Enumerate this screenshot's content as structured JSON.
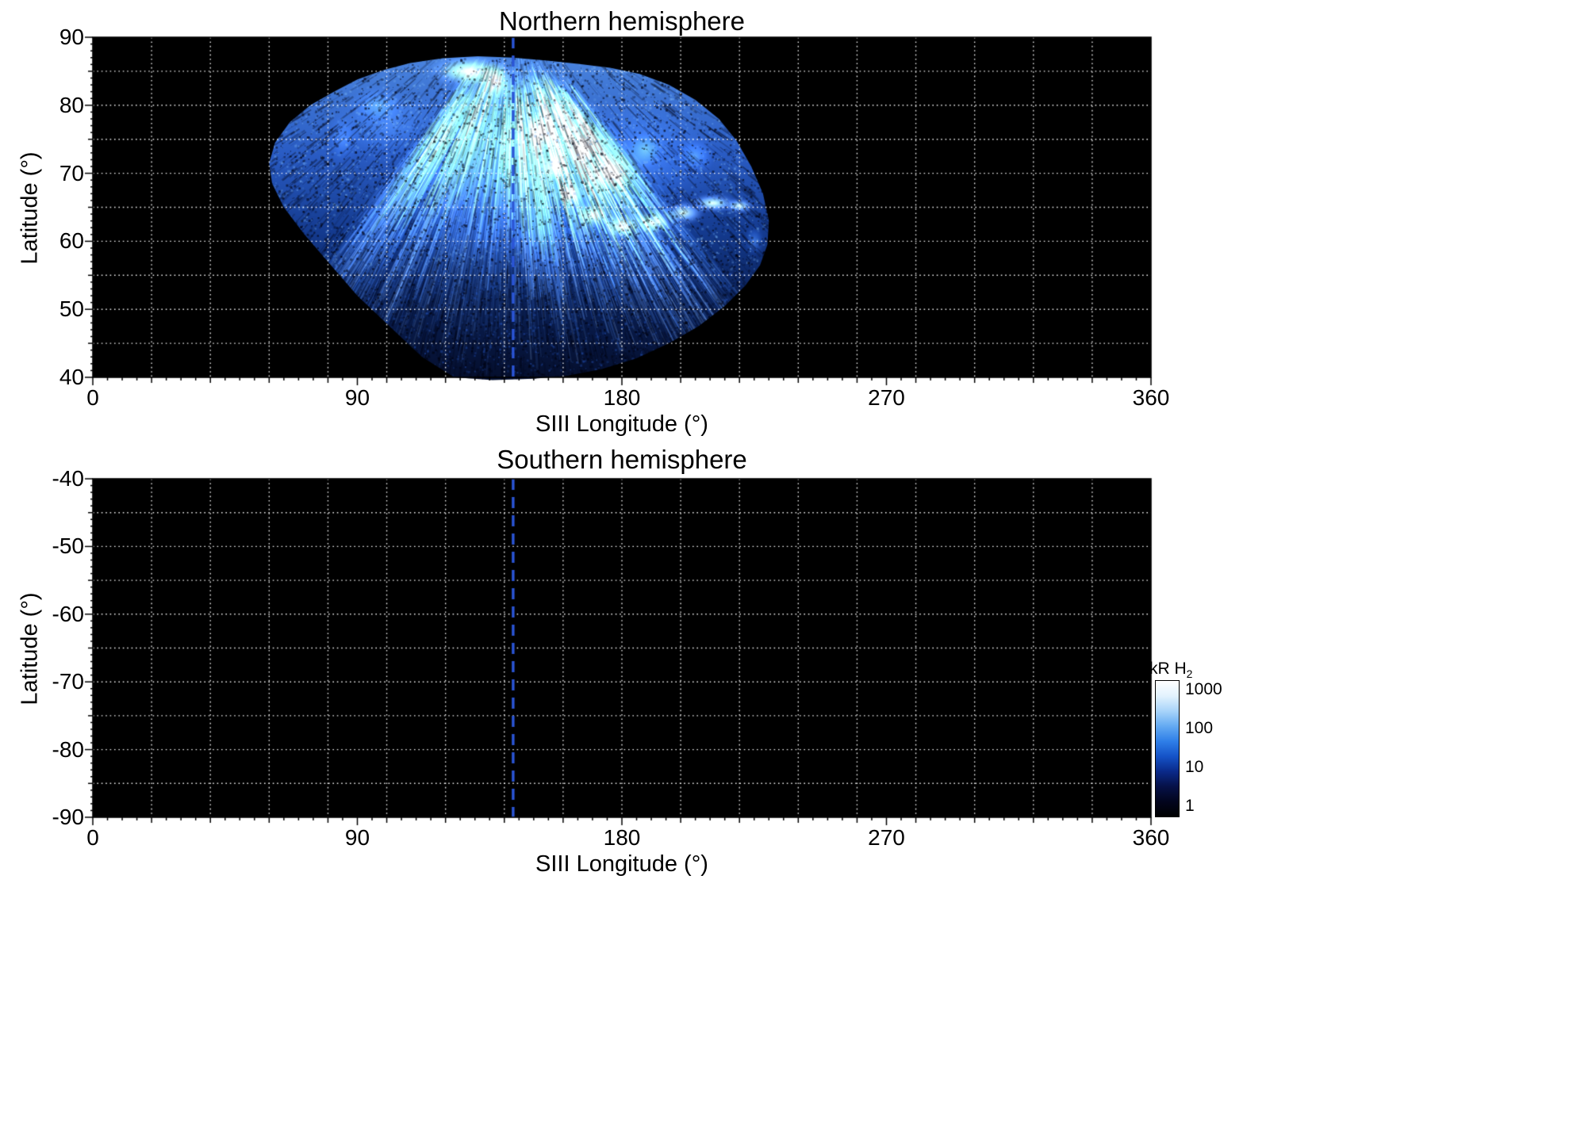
{
  "figure": {
    "background": "#ffffff",
    "plot_background": "#000000"
  },
  "chart_data": {
    "type": "heatmap",
    "xlabel": "SIII Longitude (°)",
    "ylabel": "Latitude (°)",
    "xlim": [
      0,
      360
    ],
    "xticks": [
      0,
      90,
      180,
      270,
      360
    ],
    "grid": {
      "x_step": 20,
      "y_step": 5,
      "style": "dotted",
      "color": "#ffffff"
    },
    "minor_ticks": {
      "x_step": 5,
      "y_step": 1
    },
    "cml_line": {
      "longitude": 143,
      "style": "dashed",
      "color": "#2b55d6"
    },
    "panels": [
      {
        "title": "Northern hemisphere",
        "ylim": [
          40,
          90
        ],
        "yticks": [
          40,
          50,
          60,
          70,
          80,
          90
        ],
        "has_data": true
      },
      {
        "title": "Southern hemisphere",
        "ylim": [
          -90,
          -40
        ],
        "yticks": [
          -90,
          -80,
          -70,
          -60,
          -50,
          -40
        ],
        "has_data": false
      }
    ],
    "colorbar": {
      "label": "kR H",
      "label_sub": "2",
      "ticks": [
        1,
        10,
        100,
        1000
      ],
      "log_range": [
        -0.25,
        3.25
      ],
      "colors": [
        "#000000",
        "#02051e",
        "#061148",
        "#0a2a8a",
        "#1553c8",
        "#2f7fe8",
        "#64aaf2",
        "#a8d4fa",
        "#e2f2fd",
        "#ffffff"
      ]
    },
    "aurora": {
      "hemisphere": "north",
      "lon_range": [
        60,
        230
      ],
      "lat_range": [
        40,
        87
      ],
      "outline": [
        [
          123,
          40
        ],
        [
          112,
          43
        ],
        [
          101,
          47.5
        ],
        [
          90,
          52
        ],
        [
          80,
          57
        ],
        [
          72,
          61
        ],
        [
          65,
          65
        ],
        [
          61,
          68.5
        ],
        [
          60,
          71.5
        ],
        [
          62,
          74.5
        ],
        [
          67,
          77.5
        ],
        [
          74,
          80
        ],
        [
          82,
          82
        ],
        [
          90,
          83.8
        ],
        [
          99,
          85.2
        ],
        [
          108,
          86.2
        ],
        [
          119,
          86.9
        ],
        [
          131,
          87.2
        ],
        [
          143,
          87
        ],
        [
          154,
          86.6
        ],
        [
          165,
          86.1
        ],
        [
          176,
          85.5
        ],
        [
          186,
          84.6
        ],
        [
          196,
          83
        ],
        [
          205,
          80.8
        ],
        [
          213,
          78
        ],
        [
          219,
          74.8
        ],
        [
          224,
          71
        ],
        [
          228,
          67
        ],
        [
          230,
          63
        ],
        [
          229.5,
          59.5
        ],
        [
          227,
          56.5
        ],
        [
          222,
          53.5
        ],
        [
          215,
          50.5
        ],
        [
          206,
          47.5
        ],
        [
          196,
          45
        ],
        [
          185,
          42.8
        ],
        [
          173,
          41.2
        ],
        [
          161,
          40.2
        ],
        [
          150,
          39.8
        ],
        [
          136,
          39.6
        ]
      ],
      "features": [
        [
          150,
          68,
          42,
          14,
          0.3
        ],
        [
          185,
          72,
          30,
          10,
          0.38
        ],
        [
          100,
          77,
          22,
          6,
          0.26
        ],
        [
          130,
          80,
          20,
          5,
          0.3
        ],
        [
          128,
          85,
          15,
          2.6,
          1.0
        ],
        [
          137,
          83.5,
          7,
          3.5,
          0.9
        ],
        [
          141,
          73,
          3.5,
          9,
          0.5
        ],
        [
          152,
          76,
          5,
          4,
          0.7
        ],
        [
          157,
          71,
          5,
          3,
          0.75
        ],
        [
          162,
          67,
          6,
          2.5,
          0.8
        ],
        [
          170,
          63.8,
          7,
          2.2,
          0.8
        ],
        [
          180,
          62.2,
          8,
          2.2,
          0.85
        ],
        [
          191,
          62.8,
          8,
          2.2,
          0.9
        ],
        [
          201,
          64.2,
          8,
          2,
          0.95
        ],
        [
          211,
          65.6,
          9,
          1.6,
          1.0
        ],
        [
          220,
          65.2,
          6,
          1.3,
          0.9
        ],
        [
          176,
          70,
          10,
          3.5,
          0.7
        ],
        [
          188,
          73.5,
          7,
          3,
          0.6
        ],
        [
          167,
          73.5,
          5,
          2.5,
          0.65
        ],
        [
          97,
          80,
          10,
          3,
          0.45
        ],
        [
          85,
          75,
          6,
          4,
          0.35
        ],
        [
          205,
          72.5,
          7,
          3,
          0.5
        ],
        [
          225,
          60,
          4,
          2.5,
          0.5
        ],
        [
          152,
          62,
          4,
          6,
          0.4
        ]
      ]
    }
  }
}
